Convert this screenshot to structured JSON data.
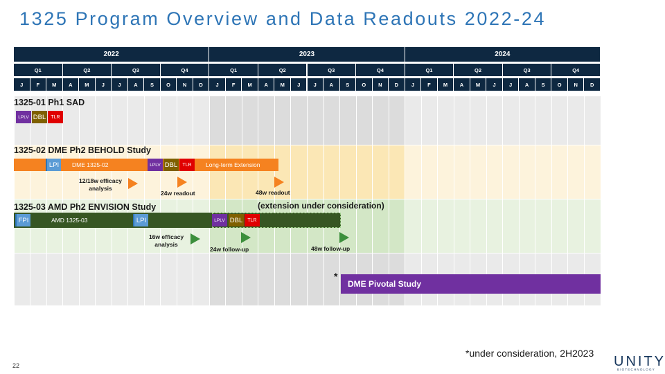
{
  "title": "1325 Program Overview and Data Readouts 2022-24",
  "timeline": {
    "years": [
      "2022",
      "2023",
      "2024"
    ],
    "quarters": [
      "Q1",
      "Q2",
      "Q3",
      "Q4",
      "Q1",
      "Q2",
      "Q3",
      "Q4",
      "Q1",
      "Q2",
      "Q3",
      "Q4"
    ],
    "months": [
      "J",
      "F",
      "M",
      "A",
      "M",
      "J",
      "J",
      "A",
      "S",
      "O",
      "N",
      "D",
      "J",
      "F",
      "M",
      "A",
      "M",
      "J",
      "J",
      "A",
      "S",
      "O",
      "N",
      "D",
      "J",
      "F",
      "M",
      "A",
      "M",
      "J",
      "J",
      "A",
      "S",
      "O",
      "N",
      "D"
    ]
  },
  "studies": {
    "sad": {
      "title": "1325-01 Ph1 SAD",
      "lplv": "LPLV",
      "dbl": "DBL",
      "tlr": "TLR"
    },
    "behold": {
      "title": "1325-02 DME Ph2 BEHOLD Study",
      "lpi": "LPI",
      "bar_label": "DME 1325-02",
      "lplv": "LPLV",
      "dbl": "DBL",
      "tlr": "TLR",
      "extension_label": "Long-term Extension",
      "efficacy_line1": "12/18w efficacy",
      "efficacy_line2": "analysis",
      "readout_24w": "24w readout",
      "readout_48w": "48w readout",
      "extension_note": "(extension under consideration)"
    },
    "envision": {
      "title": "1325-03 AMD Ph2 ENVISION Study",
      "fpi": "FPI",
      "bar_label": "AMD 1325-03",
      "lpi": "LPI",
      "lplv": "LPLV",
      "dbl": "DBL",
      "tlr": "TLR",
      "efficacy_line1": "16w efficacy",
      "efficacy_line2": "analysis",
      "followup_24w": "24w follow-up",
      "followup_48w": "48w follow-up"
    },
    "pivotal": {
      "asterisk": "*",
      "label": "DME  Pivotal Study"
    }
  },
  "footnote": "*under consideration, 2H2023",
  "page_number": "22",
  "logo": {
    "name": "UNITY",
    "sub": "BIOTECHNOLOGY"
  },
  "colors": {
    "header": "#0e2841",
    "orange": "#f58220",
    "green": "#375623",
    "purple": "#7030a0",
    "lpi_blue": "#5b9bd5",
    "dbl_olive": "#7f6000",
    "tlr_red": "#e00000"
  }
}
